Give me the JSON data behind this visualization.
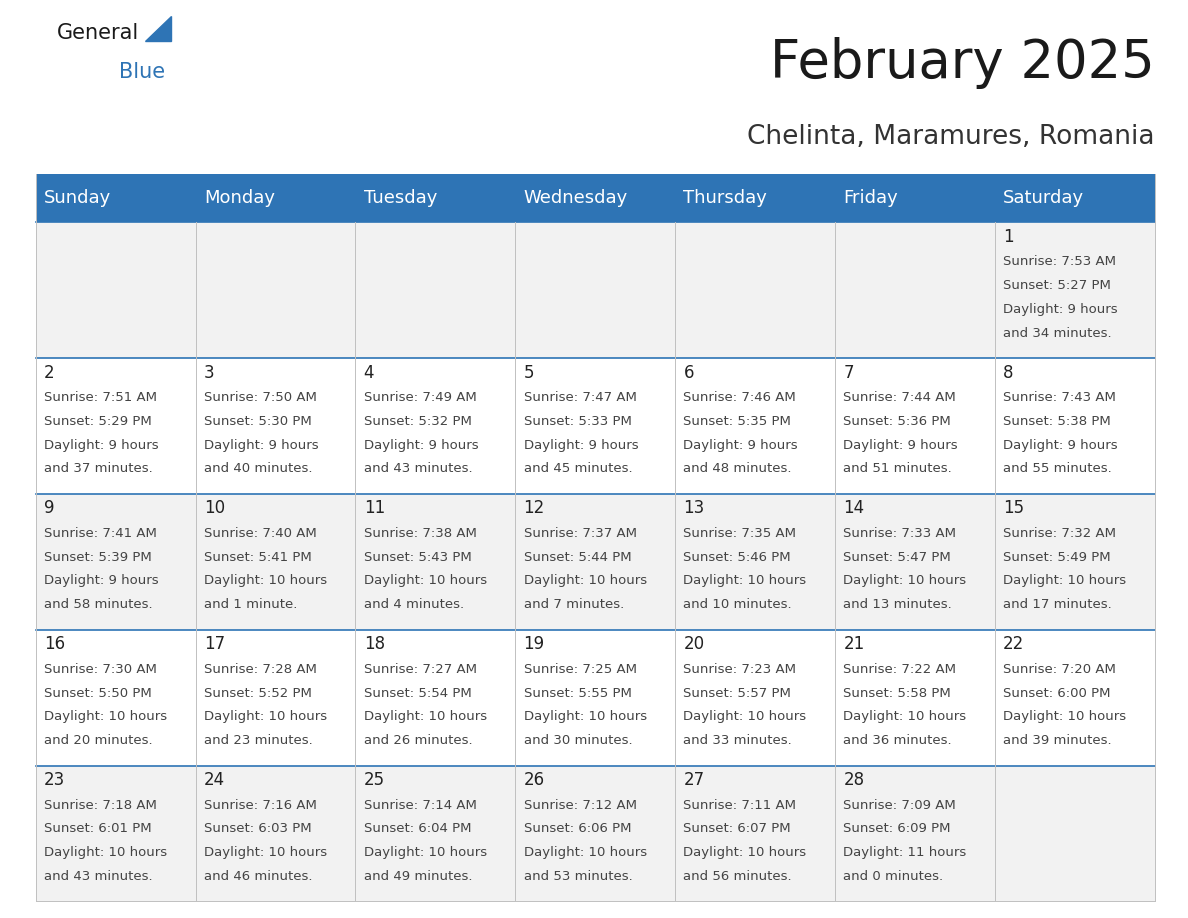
{
  "title": "February 2025",
  "subtitle": "Chelinta, Maramures, Romania",
  "header_color": "#2E74B5",
  "header_text_color": "#FFFFFF",
  "cell_bg_light": "#F2F2F2",
  "cell_bg_white": "#FFFFFF",
  "separator_color": "#2E74B5",
  "border_color": "#C0C0C0",
  "day_names": [
    "Sunday",
    "Monday",
    "Tuesday",
    "Wednesday",
    "Thursday",
    "Friday",
    "Saturday"
  ],
  "title_fontsize": 38,
  "subtitle_fontsize": 19,
  "header_fontsize": 13,
  "day_num_fontsize": 12,
  "cell_fontsize": 9.5,
  "days": [
    {
      "date": 1,
      "col": 6,
      "row": 0,
      "sunrise": "7:53 AM",
      "sunset": "5:27 PM",
      "daylight": "9 hours and 34 minutes."
    },
    {
      "date": 2,
      "col": 0,
      "row": 1,
      "sunrise": "7:51 AM",
      "sunset": "5:29 PM",
      "daylight": "9 hours and 37 minutes."
    },
    {
      "date": 3,
      "col": 1,
      "row": 1,
      "sunrise": "7:50 AM",
      "sunset": "5:30 PM",
      "daylight": "9 hours and 40 minutes."
    },
    {
      "date": 4,
      "col": 2,
      "row": 1,
      "sunrise": "7:49 AM",
      "sunset": "5:32 PM",
      "daylight": "9 hours and 43 minutes."
    },
    {
      "date": 5,
      "col": 3,
      "row": 1,
      "sunrise": "7:47 AM",
      "sunset": "5:33 PM",
      "daylight": "9 hours and 45 minutes."
    },
    {
      "date": 6,
      "col": 4,
      "row": 1,
      "sunrise": "7:46 AM",
      "sunset": "5:35 PM",
      "daylight": "9 hours and 48 minutes."
    },
    {
      "date": 7,
      "col": 5,
      "row": 1,
      "sunrise": "7:44 AM",
      "sunset": "5:36 PM",
      "daylight": "9 hours and 51 minutes."
    },
    {
      "date": 8,
      "col": 6,
      "row": 1,
      "sunrise": "7:43 AM",
      "sunset": "5:38 PM",
      "daylight": "9 hours and 55 minutes."
    },
    {
      "date": 9,
      "col": 0,
      "row": 2,
      "sunrise": "7:41 AM",
      "sunset": "5:39 PM",
      "daylight": "9 hours and 58 minutes."
    },
    {
      "date": 10,
      "col": 1,
      "row": 2,
      "sunrise": "7:40 AM",
      "sunset": "5:41 PM",
      "daylight": "10 hours and 1 minute."
    },
    {
      "date": 11,
      "col": 2,
      "row": 2,
      "sunrise": "7:38 AM",
      "sunset": "5:43 PM",
      "daylight": "10 hours and 4 minutes."
    },
    {
      "date": 12,
      "col": 3,
      "row": 2,
      "sunrise": "7:37 AM",
      "sunset": "5:44 PM",
      "daylight": "10 hours and 7 minutes."
    },
    {
      "date": 13,
      "col": 4,
      "row": 2,
      "sunrise": "7:35 AM",
      "sunset": "5:46 PM",
      "daylight": "10 hours and 10 minutes."
    },
    {
      "date": 14,
      "col": 5,
      "row": 2,
      "sunrise": "7:33 AM",
      "sunset": "5:47 PM",
      "daylight": "10 hours and 13 minutes."
    },
    {
      "date": 15,
      "col": 6,
      "row": 2,
      "sunrise": "7:32 AM",
      "sunset": "5:49 PM",
      "daylight": "10 hours and 17 minutes."
    },
    {
      "date": 16,
      "col": 0,
      "row": 3,
      "sunrise": "7:30 AM",
      "sunset": "5:50 PM",
      "daylight": "10 hours and 20 minutes."
    },
    {
      "date": 17,
      "col": 1,
      "row": 3,
      "sunrise": "7:28 AM",
      "sunset": "5:52 PM",
      "daylight": "10 hours and 23 minutes."
    },
    {
      "date": 18,
      "col": 2,
      "row": 3,
      "sunrise": "7:27 AM",
      "sunset": "5:54 PM",
      "daylight": "10 hours and 26 minutes."
    },
    {
      "date": 19,
      "col": 3,
      "row": 3,
      "sunrise": "7:25 AM",
      "sunset": "5:55 PM",
      "daylight": "10 hours and 30 minutes."
    },
    {
      "date": 20,
      "col": 4,
      "row": 3,
      "sunrise": "7:23 AM",
      "sunset": "5:57 PM",
      "daylight": "10 hours and 33 minutes."
    },
    {
      "date": 21,
      "col": 5,
      "row": 3,
      "sunrise": "7:22 AM",
      "sunset": "5:58 PM",
      "daylight": "10 hours and 36 minutes."
    },
    {
      "date": 22,
      "col": 6,
      "row": 3,
      "sunrise": "7:20 AM",
      "sunset": "6:00 PM",
      "daylight": "10 hours and 39 minutes."
    },
    {
      "date": 23,
      "col": 0,
      "row": 4,
      "sunrise": "7:18 AM",
      "sunset": "6:01 PM",
      "daylight": "10 hours and 43 minutes."
    },
    {
      "date": 24,
      "col": 1,
      "row": 4,
      "sunrise": "7:16 AM",
      "sunset": "6:03 PM",
      "daylight": "10 hours and 46 minutes."
    },
    {
      "date": 25,
      "col": 2,
      "row": 4,
      "sunrise": "7:14 AM",
      "sunset": "6:04 PM",
      "daylight": "10 hours and 49 minutes."
    },
    {
      "date": 26,
      "col": 3,
      "row": 4,
      "sunrise": "7:12 AM",
      "sunset": "6:06 PM",
      "daylight": "10 hours and 53 minutes."
    },
    {
      "date": 27,
      "col": 4,
      "row": 4,
      "sunrise": "7:11 AM",
      "sunset": "6:07 PM",
      "daylight": "10 hours and 56 minutes."
    },
    {
      "date": 28,
      "col": 5,
      "row": 4,
      "sunrise": "7:09 AM",
      "sunset": "6:09 PM",
      "daylight": "11 hours and 0 minutes."
    }
  ]
}
